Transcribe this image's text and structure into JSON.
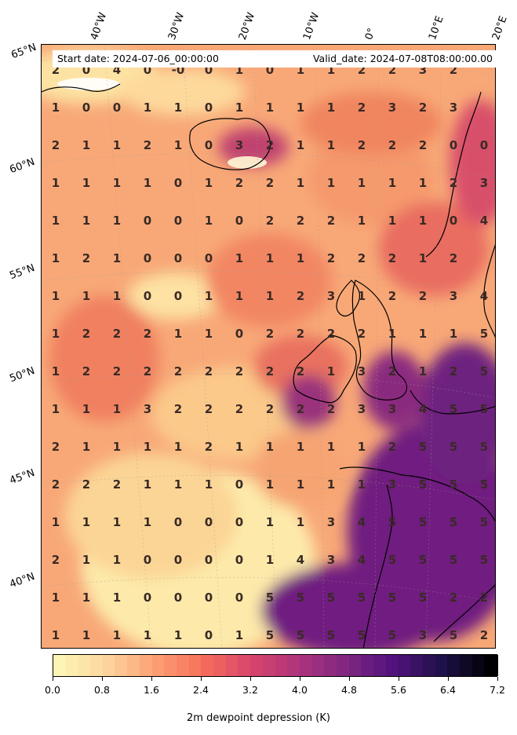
{
  "header": {
    "start_date": "Start date: 2024-07-06_00:00:00",
    "valid_date": "Valid_date: 2024-07-08T08:00:00.00"
  },
  "axes": {
    "lon_labels": [
      "40°W",
      "30°W",
      "20°W",
      "10°W",
      "0°",
      "10°E",
      "20°E"
    ],
    "lat_labels": [
      "65°N",
      "60°N",
      "55°N",
      "50°N",
      "45°N",
      "40°N"
    ]
  },
  "colorbar": {
    "label": "2m dewpoint depression (K)",
    "ticks": [
      "0.0",
      "0.8",
      "1.6",
      "2.4",
      "3.2",
      "4.0",
      "4.8",
      "5.6",
      "6.4",
      "7.2"
    ],
    "range": [
      0,
      7.2
    ],
    "colormap": "magma_r",
    "colors": [
      "#fcf5b5",
      "#fdd49e",
      "#fca072",
      "#f66e5b",
      "#d8456c",
      "#ad347c",
      "#7f2681",
      "#51127c",
      "#1e1147",
      "#000004"
    ]
  },
  "grid_values": [
    [
      "2",
      "0",
      "4",
      "0",
      "-0",
      "0",
      "1",
      "0",
      "1",
      "1",
      "2",
      "2",
      "3",
      "2",
      ""
    ],
    [
      "1",
      "0",
      "0",
      "1",
      "1",
      "0",
      "1",
      "1",
      "1",
      "1",
      "2",
      "3",
      "2",
      "3",
      ""
    ],
    [
      "2",
      "1",
      "1",
      "2",
      "1",
      "0",
      "3",
      "2",
      "1",
      "1",
      "2",
      "2",
      "2",
      "0",
      "0"
    ],
    [
      "1",
      "1",
      "1",
      "1",
      "0",
      "1",
      "2",
      "2",
      "1",
      "1",
      "1",
      "1",
      "1",
      "2",
      "3"
    ],
    [
      "1",
      "1",
      "1",
      "0",
      "0",
      "1",
      "0",
      "2",
      "2",
      "2",
      "1",
      "1",
      "1",
      "0",
      "4"
    ],
    [
      "1",
      "2",
      "1",
      "0",
      "0",
      "0",
      "1",
      "1",
      "1",
      "2",
      "2",
      "2",
      "1",
      "2",
      ""
    ],
    [
      "1",
      "1",
      "1",
      "0",
      "0",
      "1",
      "1",
      "1",
      "2",
      "3",
      "1",
      "2",
      "2",
      "3",
      "4"
    ],
    [
      "1",
      "2",
      "2",
      "2",
      "1",
      "1",
      "0",
      "2",
      "2",
      "2",
      "2",
      "1",
      "1",
      "1",
      "5"
    ],
    [
      "1",
      "2",
      "2",
      "2",
      "2",
      "2",
      "2",
      "2",
      "2",
      "1",
      "3",
      "2",
      "1",
      "2",
      "5"
    ],
    [
      "1",
      "1",
      "1",
      "3",
      "2",
      "2",
      "2",
      "2",
      "2",
      "2",
      "3",
      "3",
      "4",
      "5",
      "5"
    ],
    [
      "2",
      "1",
      "1",
      "1",
      "1",
      "2",
      "1",
      "1",
      "1",
      "1",
      "1",
      "2",
      "5",
      "5",
      "5"
    ],
    [
      "2",
      "2",
      "2",
      "1",
      "1",
      "1",
      "0",
      "1",
      "1",
      "1",
      "1",
      "3",
      "5",
      "5",
      "5"
    ],
    [
      "1",
      "1",
      "1",
      "1",
      "0",
      "0",
      "0",
      "1",
      "1",
      "3",
      "4",
      "5",
      "5",
      "5",
      "5"
    ],
    [
      "2",
      "1",
      "1",
      "0",
      "0",
      "0",
      "0",
      "1",
      "4",
      "3",
      "4",
      "5",
      "5",
      "5",
      "5"
    ],
    [
      "1",
      "1",
      "1",
      "0",
      "0",
      "0",
      "0",
      "5",
      "5",
      "5",
      "5",
      "5",
      "5",
      "2",
      "2"
    ],
    [
      "1",
      "1",
      "1",
      "1",
      "1",
      "0",
      "1",
      "5",
      "5",
      "5",
      "5",
      "5",
      "3",
      "5",
      "2"
    ]
  ]
}
